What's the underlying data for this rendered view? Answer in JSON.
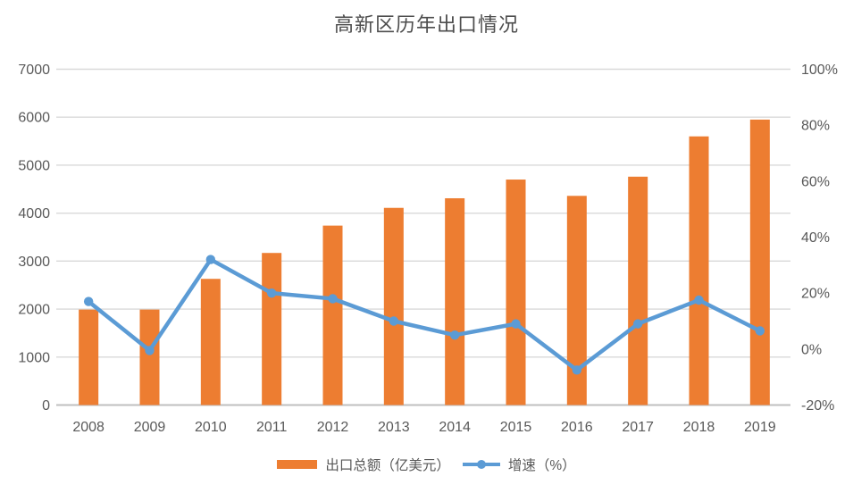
{
  "title": "高新区历年出口情况",
  "legend": {
    "exports_label": "出口总额（亿美元）",
    "growth_label": "增速（%）"
  },
  "colors": {
    "bar": "#ED7D31",
    "line": "#5B9BD5",
    "gridline": "#D9D9D9",
    "axis_line": "#BFBFBF",
    "text": "#595959"
  },
  "chart_data": {
    "type": "bar",
    "subtype": "combo-bar-line",
    "title": "高新区历年出口情况",
    "categories": [
      "2008",
      "2009",
      "2010",
      "2011",
      "2012",
      "2013",
      "2014",
      "2015",
      "2016",
      "2017",
      "2018",
      "2019"
    ],
    "series": [
      {
        "name": "出口总额（亿美元）",
        "type": "bar",
        "axis": "left",
        "values": [
          1990,
          1990,
          2630,
          3170,
          3740,
          4110,
          4310,
          4700,
          4360,
          4760,
          5600,
          5950
        ]
      },
      {
        "name": "增速（%）",
        "type": "line",
        "axis": "right",
        "values": [
          17,
          -0.5,
          32,
          20,
          18,
          10,
          5,
          9,
          -7.5,
          9,
          17.5,
          6.5
        ]
      }
    ],
    "left_axis": {
      "min": 0,
      "max": 7000,
      "step": 1000,
      "tick_labels": [
        "0",
        "1000",
        "2000",
        "3000",
        "4000",
        "5000",
        "6000",
        "7000"
      ]
    },
    "right_axis": {
      "min": -20,
      "max": 100,
      "step": 20,
      "tick_labels": [
        "-20%",
        "0%",
        "20%",
        "40%",
        "60%",
        "80%",
        "100%"
      ]
    },
    "grid": true,
    "legend_position": "bottom"
  }
}
